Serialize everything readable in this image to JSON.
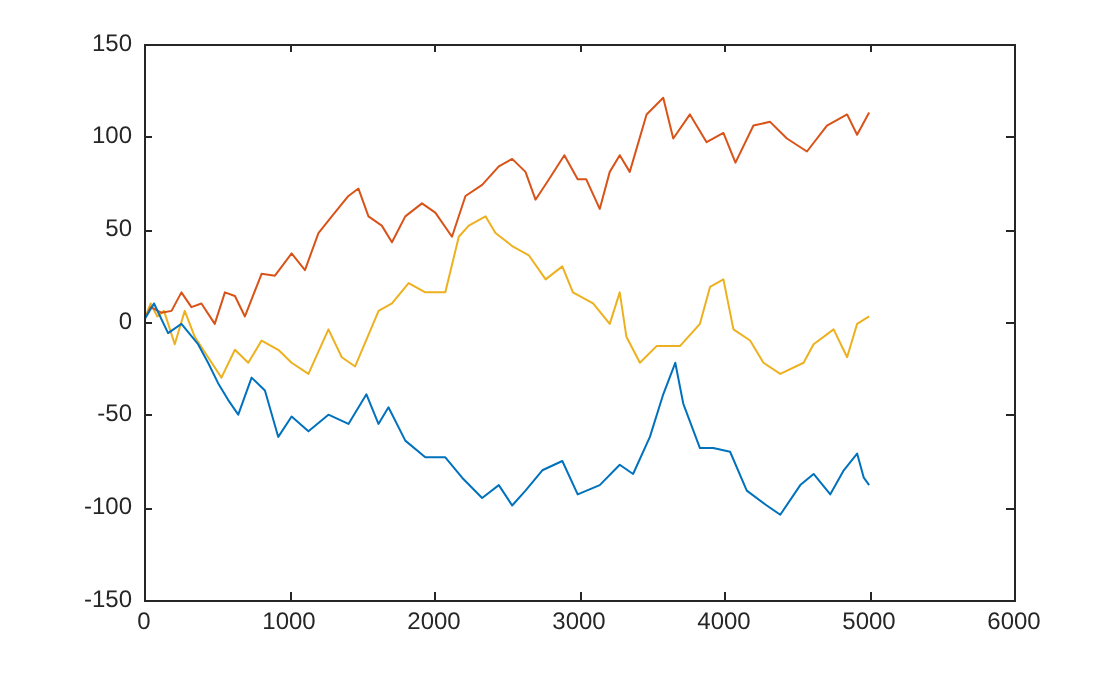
{
  "chart_data": {
    "type": "line",
    "xlim": [
      0,
      6000
    ],
    "xticks": [
      0,
      1000,
      2000,
      3000,
      4000,
      5000,
      6000
    ],
    "ylim": [
      -150,
      150
    ],
    "yticks": [
      -150,
      -100,
      -50,
      0,
      50,
      100,
      150
    ],
    "grid": false,
    "legend": false,
    "marker": "none",
    "line_style": "solid",
    "series": [
      {
        "color": "#0072bd",
        "x": [
          0,
          69,
          166,
          258,
          373,
          442,
          511,
          580,
          650,
          742,
          834,
          926,
          1018,
          1134,
          1272,
          1410,
          1534,
          1617,
          1686,
          1802,
          1940,
          2078,
          2194,
          2332,
          2447,
          2539,
          2631,
          2747,
          2885,
          2991,
          3143,
          3281,
          3373,
          3489,
          3581,
          3664,
          3719,
          3834,
          3926,
          4042,
          4157,
          4295,
          4388,
          4526,
          4618,
          4733,
          4826,
          4918,
          4964,
          5001
        ],
        "values": [
          1,
          10,
          -6,
          -1,
          -12,
          -22,
          -33,
          -42,
          -50,
          -30,
          -37,
          -62,
          -51,
          -59,
          -50,
          -55,
          -39,
          -55,
          -46,
          -64,
          -73,
          -73,
          -84,
          -95,
          -88,
          -99,
          -91,
          -80,
          -75,
          -93,
          -88,
          -77,
          -82,
          -62,
          -39,
          -22,
          -44,
          -68,
          -68,
          -70,
          -91,
          -99,
          -104,
          -88,
          -82,
          -93,
          -80,
          -71,
          -84,
          -88
        ]
      },
      {
        "color": "#d95319",
        "x": [
          0,
          46,
          120,
          190,
          258,
          327,
          396,
          488,
          558,
          627,
          696,
          811,
          903,
          1018,
          1110,
          1203,
          1295,
          1410,
          1479,
          1548,
          1640,
          1710,
          1802,
          1917,
          2009,
          2124,
          2217,
          2332,
          2447,
          2539,
          2631,
          2700,
          2793,
          2899,
          2991,
          3050,
          3143,
          3212,
          3281,
          3350,
          3466,
          3581,
          3650,
          3765,
          3880,
          3996,
          4079,
          4203,
          4318,
          4434,
          4572,
          4710,
          4849,
          4918,
          5001
        ],
        "values": [
          1,
          8,
          5,
          6,
          16,
          8,
          10,
          -1,
          16,
          14,
          3,
          26,
          25,
          37,
          28,
          48,
          57,
          68,
          72,
          57,
          52,
          43,
          57,
          64,
          59,
          46,
          68,
          74,
          84,
          88,
          81,
          66,
          77,
          90,
          77,
          77,
          61,
          81,
          90,
          81,
          112,
          121,
          99,
          112,
          97,
          102,
          86,
          106,
          108,
          99,
          92,
          106,
          112,
          101,
          113
        ]
      },
      {
        "color": "#edb120",
        "x": [
          0,
          46,
          92,
          138,
          212,
          281,
          350,
          442,
          534,
          627,
          719,
          811,
          926,
          1018,
          1134,
          1272,
          1364,
          1456,
          1618,
          1710,
          1825,
          1940,
          2078,
          2171,
          2240,
          2355,
          2424,
          2539,
          2654,
          2770,
          2885,
          2958,
          3097,
          3212,
          3281,
          3327,
          3420,
          3535,
          3696,
          3834,
          3904,
          3996,
          4065,
          4180,
          4272,
          4388,
          4549,
          4618,
          4756,
          4849,
          4918,
          5001
        ],
        "values": [
          1,
          10,
          3,
          6,
          -12,
          6,
          -8,
          -19,
          -30,
          -15,
          -22,
          -10,
          -15,
          -22,
          -28,
          -4,
          -19,
          -24,
          6,
          10,
          21,
          16,
          16,
          46,
          52,
          57,
          48,
          41,
          36,
          23,
          30,
          16,
          10,
          -1,
          16,
          -8,
          -22,
          -13,
          -13,
          -1,
          19,
          23,
          -4,
          -10,
          -22,
          -28,
          -22,
          -12,
          -4,
          -19,
          -1,
          3
        ]
      }
    ]
  }
}
